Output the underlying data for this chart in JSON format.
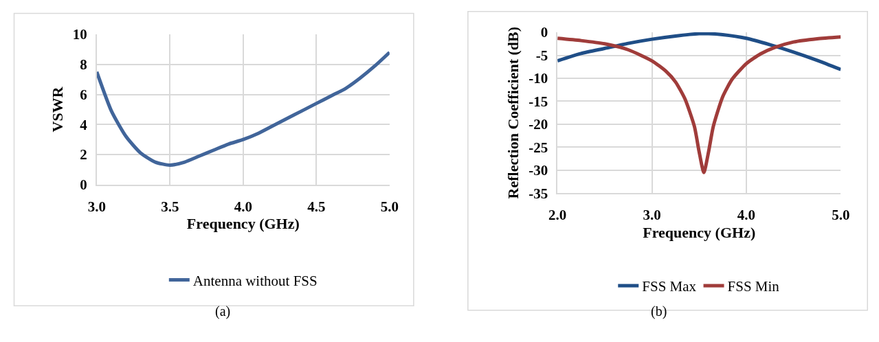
{
  "chart_data": [
    {
      "type": "line",
      "xlabel": "Frequency (GHz)",
      "ylabel": "VSWR",
      "xlim": [
        3,
        5
      ],
      "xticks": [
        {
          "value": 3,
          "label": "3.0"
        },
        {
          "value": 3.5,
          "label": "3.5"
        },
        {
          "value": 4,
          "label": "4.0"
        },
        {
          "value": 4.5,
          "label": "4.5"
        },
        {
          "value": 5,
          "label": "5.0"
        }
      ],
      "ylim": [
        0,
        10
      ],
      "yticks": [
        0,
        2,
        4,
        6,
        8,
        10
      ],
      "grid": true,
      "legend": "bottom",
      "line_style": "solid",
      "marker": "none",
      "annotations": [
        "(a)"
      ],
      "x": [
        3.0,
        3.1,
        3.2,
        3.3,
        3.4,
        3.5,
        3.6,
        3.7,
        3.8,
        3.9,
        4.0,
        4.1,
        4.2,
        4.3,
        4.4,
        4.5,
        4.6,
        4.7,
        4.8,
        4.9,
        5.0
      ],
      "series": [
        {
          "name": "Antenna without FSS",
          "color": "#41659a",
          "values": [
            7.5,
            4.9,
            3.2,
            2.1,
            1.5,
            1.3,
            1.5,
            1.9,
            2.3,
            2.7,
            3.0,
            3.4,
            3.9,
            4.4,
            4.9,
            5.4,
            5.9,
            6.4,
            7.1,
            7.9,
            8.8
          ]
        }
      ]
    },
    {
      "type": "line",
      "xlabel": "Frequency (GHz)",
      "ylabel": "Reflection Coefficient (dB)",
      "xlim": [
        2,
        5
      ],
      "xticks": [
        {
          "value": 2,
          "label": "2.0"
        },
        {
          "value": 3,
          "label": "3.0"
        },
        {
          "value": 4,
          "label": "4.0"
        },
        {
          "value": 5,
          "label": "5.0"
        }
      ],
      "ylim": [
        -35,
        0
      ],
      "yticks": [
        -35,
        -30,
        -25,
        -20,
        -15,
        -10,
        -5,
        0
      ],
      "grid": true,
      "legend": "bottom",
      "line_style": "solid",
      "marker": "none",
      "annotations": [
        "(b)"
      ],
      "series": [
        {
          "name": "FSS Max",
          "color": "#1f4e87",
          "x": [
            2.0,
            2.25,
            2.5,
            2.75,
            3.0,
            3.25,
            3.5,
            3.6,
            3.75,
            4.0,
            4.25,
            4.5,
            4.75,
            5.0
          ],
          "values": [
            -6.2,
            -4.6,
            -3.5,
            -2.4,
            -1.5,
            -0.8,
            -0.3,
            -0.3,
            -0.5,
            -1.3,
            -2.7,
            -4.3,
            -6.1,
            -8.1
          ]
        },
        {
          "name": "FSS Min",
          "color": "#a03c3a",
          "x": [
            2.0,
            2.25,
            2.5,
            2.75,
            3.0,
            3.15,
            3.25,
            3.35,
            3.45,
            3.5,
            3.55,
            3.6,
            3.65,
            3.75,
            3.85,
            4.0,
            4.15,
            4.3,
            4.5,
            4.75,
            5.0
          ],
          "values": [
            -1.3,
            -1.8,
            -2.5,
            -3.8,
            -6.2,
            -8.5,
            -10.8,
            -14.5,
            -20.5,
            -26,
            -30.5,
            -26,
            -20.5,
            -14,
            -10.2,
            -6.8,
            -4.7,
            -3.3,
            -2.1,
            -1.4,
            -1.0
          ]
        }
      ]
    }
  ]
}
